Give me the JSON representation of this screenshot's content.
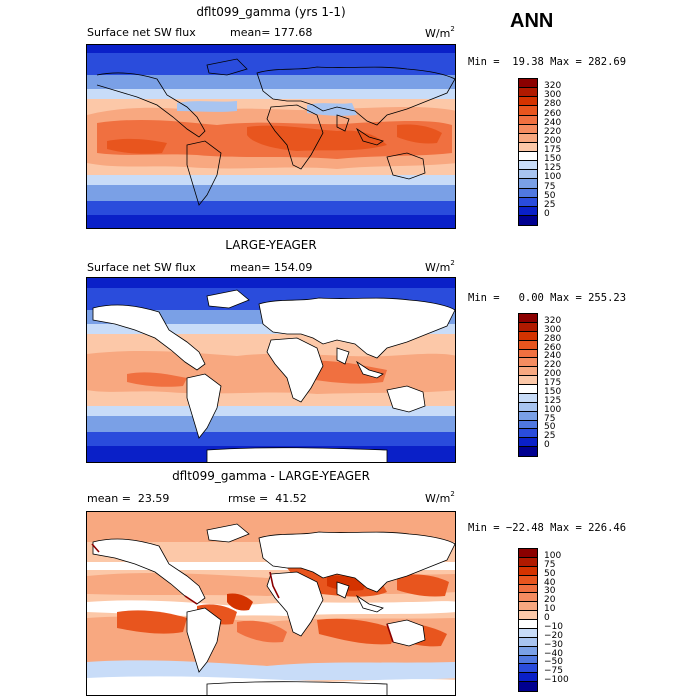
{
  "season": "ANN",
  "panels": [
    {
      "title": "dflt099_gamma (yrs 1-1)",
      "variable": "Surface net SW flux",
      "stat": "mean= 177.68",
      "units_base": "W/m",
      "units_exp": "2",
      "minmax": "Min =  19.38 Max = 282.69",
      "colorbar": {
        "labels": [
          "320",
          "300",
          "280",
          "260",
          "240",
          "220",
          "200",
          "175",
          "150",
          "125",
          "100",
          "75",
          "50",
          "25",
          "0"
        ],
        "colors": [
          "#8b0000",
          "#b01a00",
          "#d43300",
          "#e8551e",
          "#f07040",
          "#f58c60",
          "#f8a880",
          "#fcc8a8",
          "#ffffff",
          "#c8dcf8",
          "#a8c4f0",
          "#7aa0e6",
          "#5078e0",
          "#2a4cdc",
          "#0a20c8",
          "#000090"
        ]
      },
      "chart_data": {
        "type": "heatmap",
        "description_fields": "global map of annual surface net shortwave flux",
        "mean": 177.68,
        "min": 19.38,
        "max": 282.69,
        "units": "W/m2",
        "levels": [
          0,
          25,
          50,
          75,
          100,
          125,
          150,
          175,
          200,
          220,
          240,
          260,
          280,
          300,
          320
        ]
      }
    },
    {
      "title": "LARGE-YEAGER",
      "variable": "Surface net SW flux",
      "stat": "mean= 154.09",
      "units_base": "W/m",
      "units_exp": "2",
      "minmax": "Min =   0.00 Max = 255.23",
      "colorbar": {
        "labels": [
          "320",
          "300",
          "280",
          "260",
          "240",
          "220",
          "200",
          "175",
          "150",
          "125",
          "100",
          "75",
          "50",
          "25",
          "0"
        ],
        "colors": [
          "#8b0000",
          "#b01a00",
          "#d43300",
          "#e8551e",
          "#f07040",
          "#f58c60",
          "#f8a880",
          "#fcc8a8",
          "#ffffff",
          "#c8dcf8",
          "#a8c4f0",
          "#7aa0e6",
          "#5078e0",
          "#2a4cdc",
          "#0a20c8",
          "#000090"
        ]
      },
      "chart_data": {
        "type": "heatmap",
        "mean": 154.09,
        "min": 0.0,
        "max": 255.23,
        "units": "W/m2",
        "levels": [
          0,
          25,
          50,
          75,
          100,
          125,
          150,
          175,
          200,
          220,
          240,
          260,
          280,
          300,
          320
        ]
      }
    },
    {
      "title": "dflt099_gamma - LARGE-YEAGER",
      "variable": "mean =  23.59",
      "stat": "rmse =  41.52",
      "units_base": "W/m",
      "units_exp": "2",
      "minmax": "Min = −22.48 Max = 226.46",
      "colorbar": {
        "labels": [
          "100",
          "75",
          "50",
          "40",
          "30",
          "20",
          "10",
          "0",
          "−10",
          "−20",
          "−30",
          "−40",
          "−50",
          "−75",
          "−100"
        ],
        "colors": [
          "#8b0000",
          "#b01a00",
          "#d43300",
          "#e8551e",
          "#f07040",
          "#f58c60",
          "#f8a880",
          "#fcc8a8",
          "#ffffff",
          "#c8dcf8",
          "#a8c4f0",
          "#7aa0e6",
          "#5078e0",
          "#2a4cdc",
          "#0a20c8",
          "#000090"
        ]
      },
      "chart_data": {
        "type": "heatmap",
        "mean": 23.59,
        "rmse": 41.52,
        "min": -22.48,
        "max": 226.46,
        "units": "W/m2",
        "levels": [
          -100,
          -75,
          -50,
          -40,
          -30,
          -20,
          -10,
          0,
          10,
          20,
          30,
          40,
          50,
          75,
          100
        ]
      }
    }
  ]
}
